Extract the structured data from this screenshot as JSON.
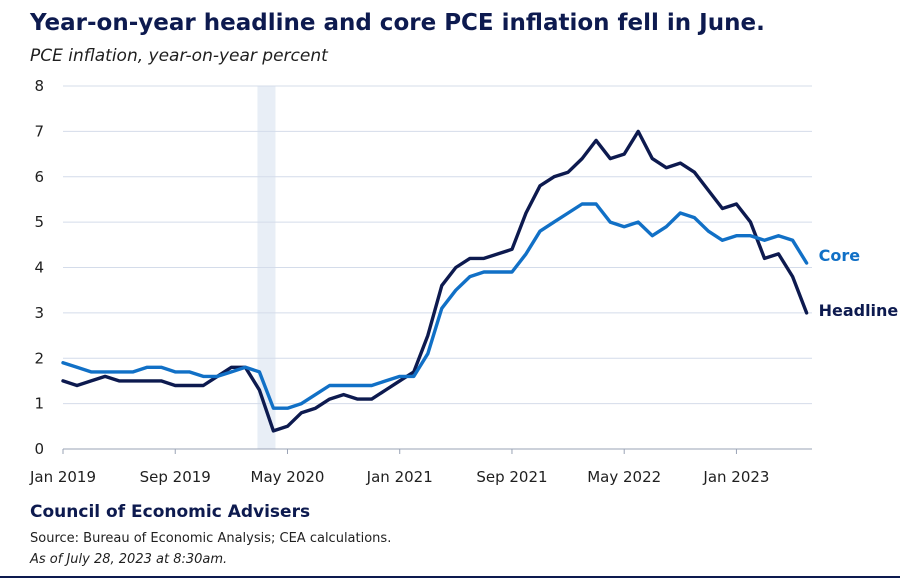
{
  "title": "Year-on-year headline and core PCE inflation fell in June.",
  "subtitle": "PCE inflation, year-on-year percent",
  "footer": {
    "organization": "Council of Economic Advisers",
    "source": "Source: Bureau of Economic Analysis; CEA calculations.",
    "timestamp": "As of July 28, 2023 at 8:30am."
  },
  "colors": {
    "headline": "#0d1a4f",
    "core": "#1170c6",
    "recession_shade": "#e8eef6",
    "grid": "#d4dcea"
  },
  "chart_data": {
    "type": "line",
    "title": "Year-on-year headline and core PCE inflation fell in June.",
    "ylabel": "PCE inflation, year-on-year percent",
    "xlabel": "",
    "ylim": [
      0,
      8
    ],
    "yticks": [
      0,
      1,
      2,
      3,
      4,
      5,
      6,
      7,
      8
    ],
    "xticks": [
      "Jan 2019",
      "Sep 2019",
      "May 2020",
      "Jan 2021",
      "Sep 2021",
      "May 2022",
      "Jan 2023"
    ],
    "x": [
      "Jan 2019",
      "Feb 2019",
      "Mar 2019",
      "Apr 2019",
      "May 2019",
      "Jun 2019",
      "Jul 2019",
      "Aug 2019",
      "Sep 2019",
      "Oct 2019",
      "Nov 2019",
      "Dec 2019",
      "Jan 2020",
      "Feb 2020",
      "Mar 2020",
      "Apr 2020",
      "May 2020",
      "Jun 2020",
      "Jul 2020",
      "Aug 2020",
      "Sep 2020",
      "Oct 2020",
      "Nov 2020",
      "Dec 2020",
      "Jan 2021",
      "Feb 2021",
      "Mar 2021",
      "Apr 2021",
      "May 2021",
      "Jun 2021",
      "Jul 2021",
      "Aug 2021",
      "Sep 2021",
      "Oct 2021",
      "Nov 2021",
      "Dec 2021",
      "Jan 2022",
      "Feb 2022",
      "Mar 2022",
      "Apr 2022",
      "May 2022",
      "Jun 2022",
      "Jul 2022",
      "Aug 2022",
      "Sep 2022",
      "Oct 2022",
      "Nov 2022",
      "Dec 2022",
      "Jan 2023",
      "Feb 2023",
      "Mar 2023",
      "Apr 2023",
      "May 2023",
      "Jun 2023"
    ],
    "shaded_region": [
      "Mar 2020",
      "Apr 2020"
    ],
    "grid": true,
    "series": [
      {
        "name": "Headline",
        "values": [
          1.5,
          1.4,
          1.5,
          1.6,
          1.5,
          1.5,
          1.5,
          1.5,
          1.4,
          1.4,
          1.4,
          1.6,
          1.8,
          1.8,
          1.3,
          0.4,
          0.5,
          0.8,
          0.9,
          1.1,
          1.2,
          1.1,
          1.1,
          1.3,
          1.5,
          1.7,
          2.5,
          3.6,
          4.0,
          4.2,
          4.2,
          4.3,
          4.4,
          5.2,
          5.8,
          6.0,
          6.1,
          6.4,
          6.8,
          6.4,
          6.5,
          7.0,
          6.4,
          6.2,
          6.3,
          6.1,
          5.7,
          5.3,
          5.4,
          5.0,
          4.2,
          4.3,
          3.8,
          3.0
        ]
      },
      {
        "name": "Core",
        "values": [
          1.9,
          1.8,
          1.7,
          1.7,
          1.7,
          1.7,
          1.8,
          1.8,
          1.7,
          1.7,
          1.6,
          1.6,
          1.7,
          1.8,
          1.7,
          0.9,
          0.9,
          1.0,
          1.2,
          1.4,
          1.4,
          1.4,
          1.4,
          1.5,
          1.6,
          1.6,
          2.1,
          3.1,
          3.5,
          3.8,
          3.9,
          3.9,
          3.9,
          4.3,
          4.8,
          5.0,
          5.2,
          5.4,
          5.4,
          5.0,
          4.9,
          5.0,
          4.7,
          4.9,
          5.2,
          5.1,
          4.8,
          4.6,
          4.7,
          4.7,
          4.6,
          4.7,
          4.6,
          4.1
        ]
      }
    ]
  }
}
